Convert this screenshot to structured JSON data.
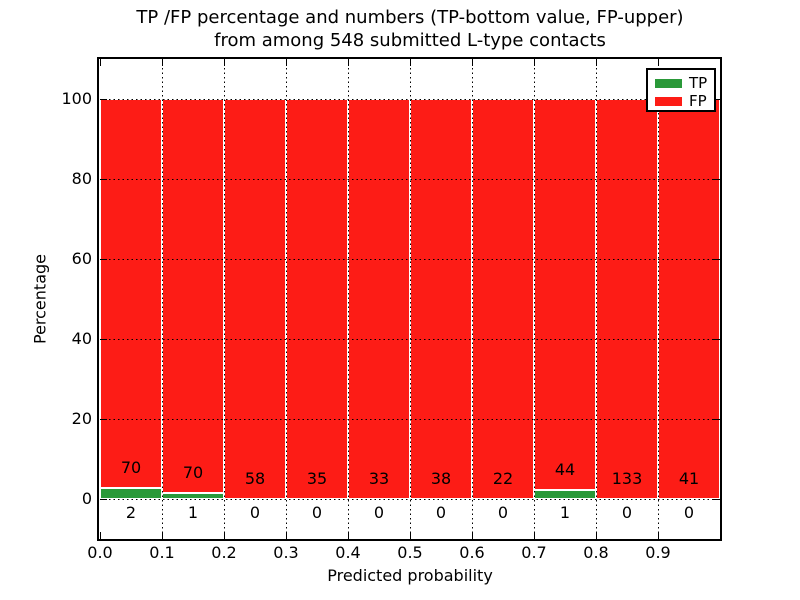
{
  "figure": {
    "title_line1": "TP /FP percentage and numbers (TP-bottom value, FP-upper)",
    "title_line2": "from among 548 submitted L-type contacts"
  },
  "chart_data": {
    "type": "bar",
    "stacked": true,
    "title": "TP /FP percentage and numbers (TP-bottom value, FP-upper) from among 548 submitted L-type contacts",
    "xlabel": "Predicted probability",
    "ylabel": "Percentage",
    "xlim": [
      0.0,
      1.0
    ],
    "ylim": [
      -10,
      110
    ],
    "x_ticks": [
      "0.0",
      "0.1",
      "0.2",
      "0.3",
      "0.4",
      "0.5",
      "0.6",
      "0.7",
      "0.8",
      "0.9"
    ],
    "y_ticks": [
      0,
      20,
      40,
      60,
      80,
      100
    ],
    "grid": {
      "style": "dotted",
      "color": "#000000"
    },
    "bar_edge_color": "#ffffff",
    "legend": {
      "position": "upper right",
      "entries": [
        {
          "label": "TP",
          "color": "#2a9939"
        },
        {
          "label": "FP",
          "color": "#fd1c16"
        }
      ]
    },
    "total_contacts": 548,
    "bin_width": 0.1,
    "bins": [
      {
        "x_start": 0.0,
        "tp": 2,
        "fp": 70
      },
      {
        "x_start": 0.1,
        "tp": 1,
        "fp": 70
      },
      {
        "x_start": 0.2,
        "tp": 0,
        "fp": 58
      },
      {
        "x_start": 0.3,
        "tp": 0,
        "fp": 35
      },
      {
        "x_start": 0.4,
        "tp": 0,
        "fp": 33
      },
      {
        "x_start": 0.5,
        "tp": 0,
        "fp": 38
      },
      {
        "x_start": 0.6,
        "tp": 0,
        "fp": 22
      },
      {
        "x_start": 0.7,
        "tp": 1,
        "fp": 44
      },
      {
        "x_start": 0.8,
        "tp": 0,
        "fp": 133
      },
      {
        "x_start": 0.9,
        "tp": 0,
        "fp": 41
      }
    ]
  }
}
